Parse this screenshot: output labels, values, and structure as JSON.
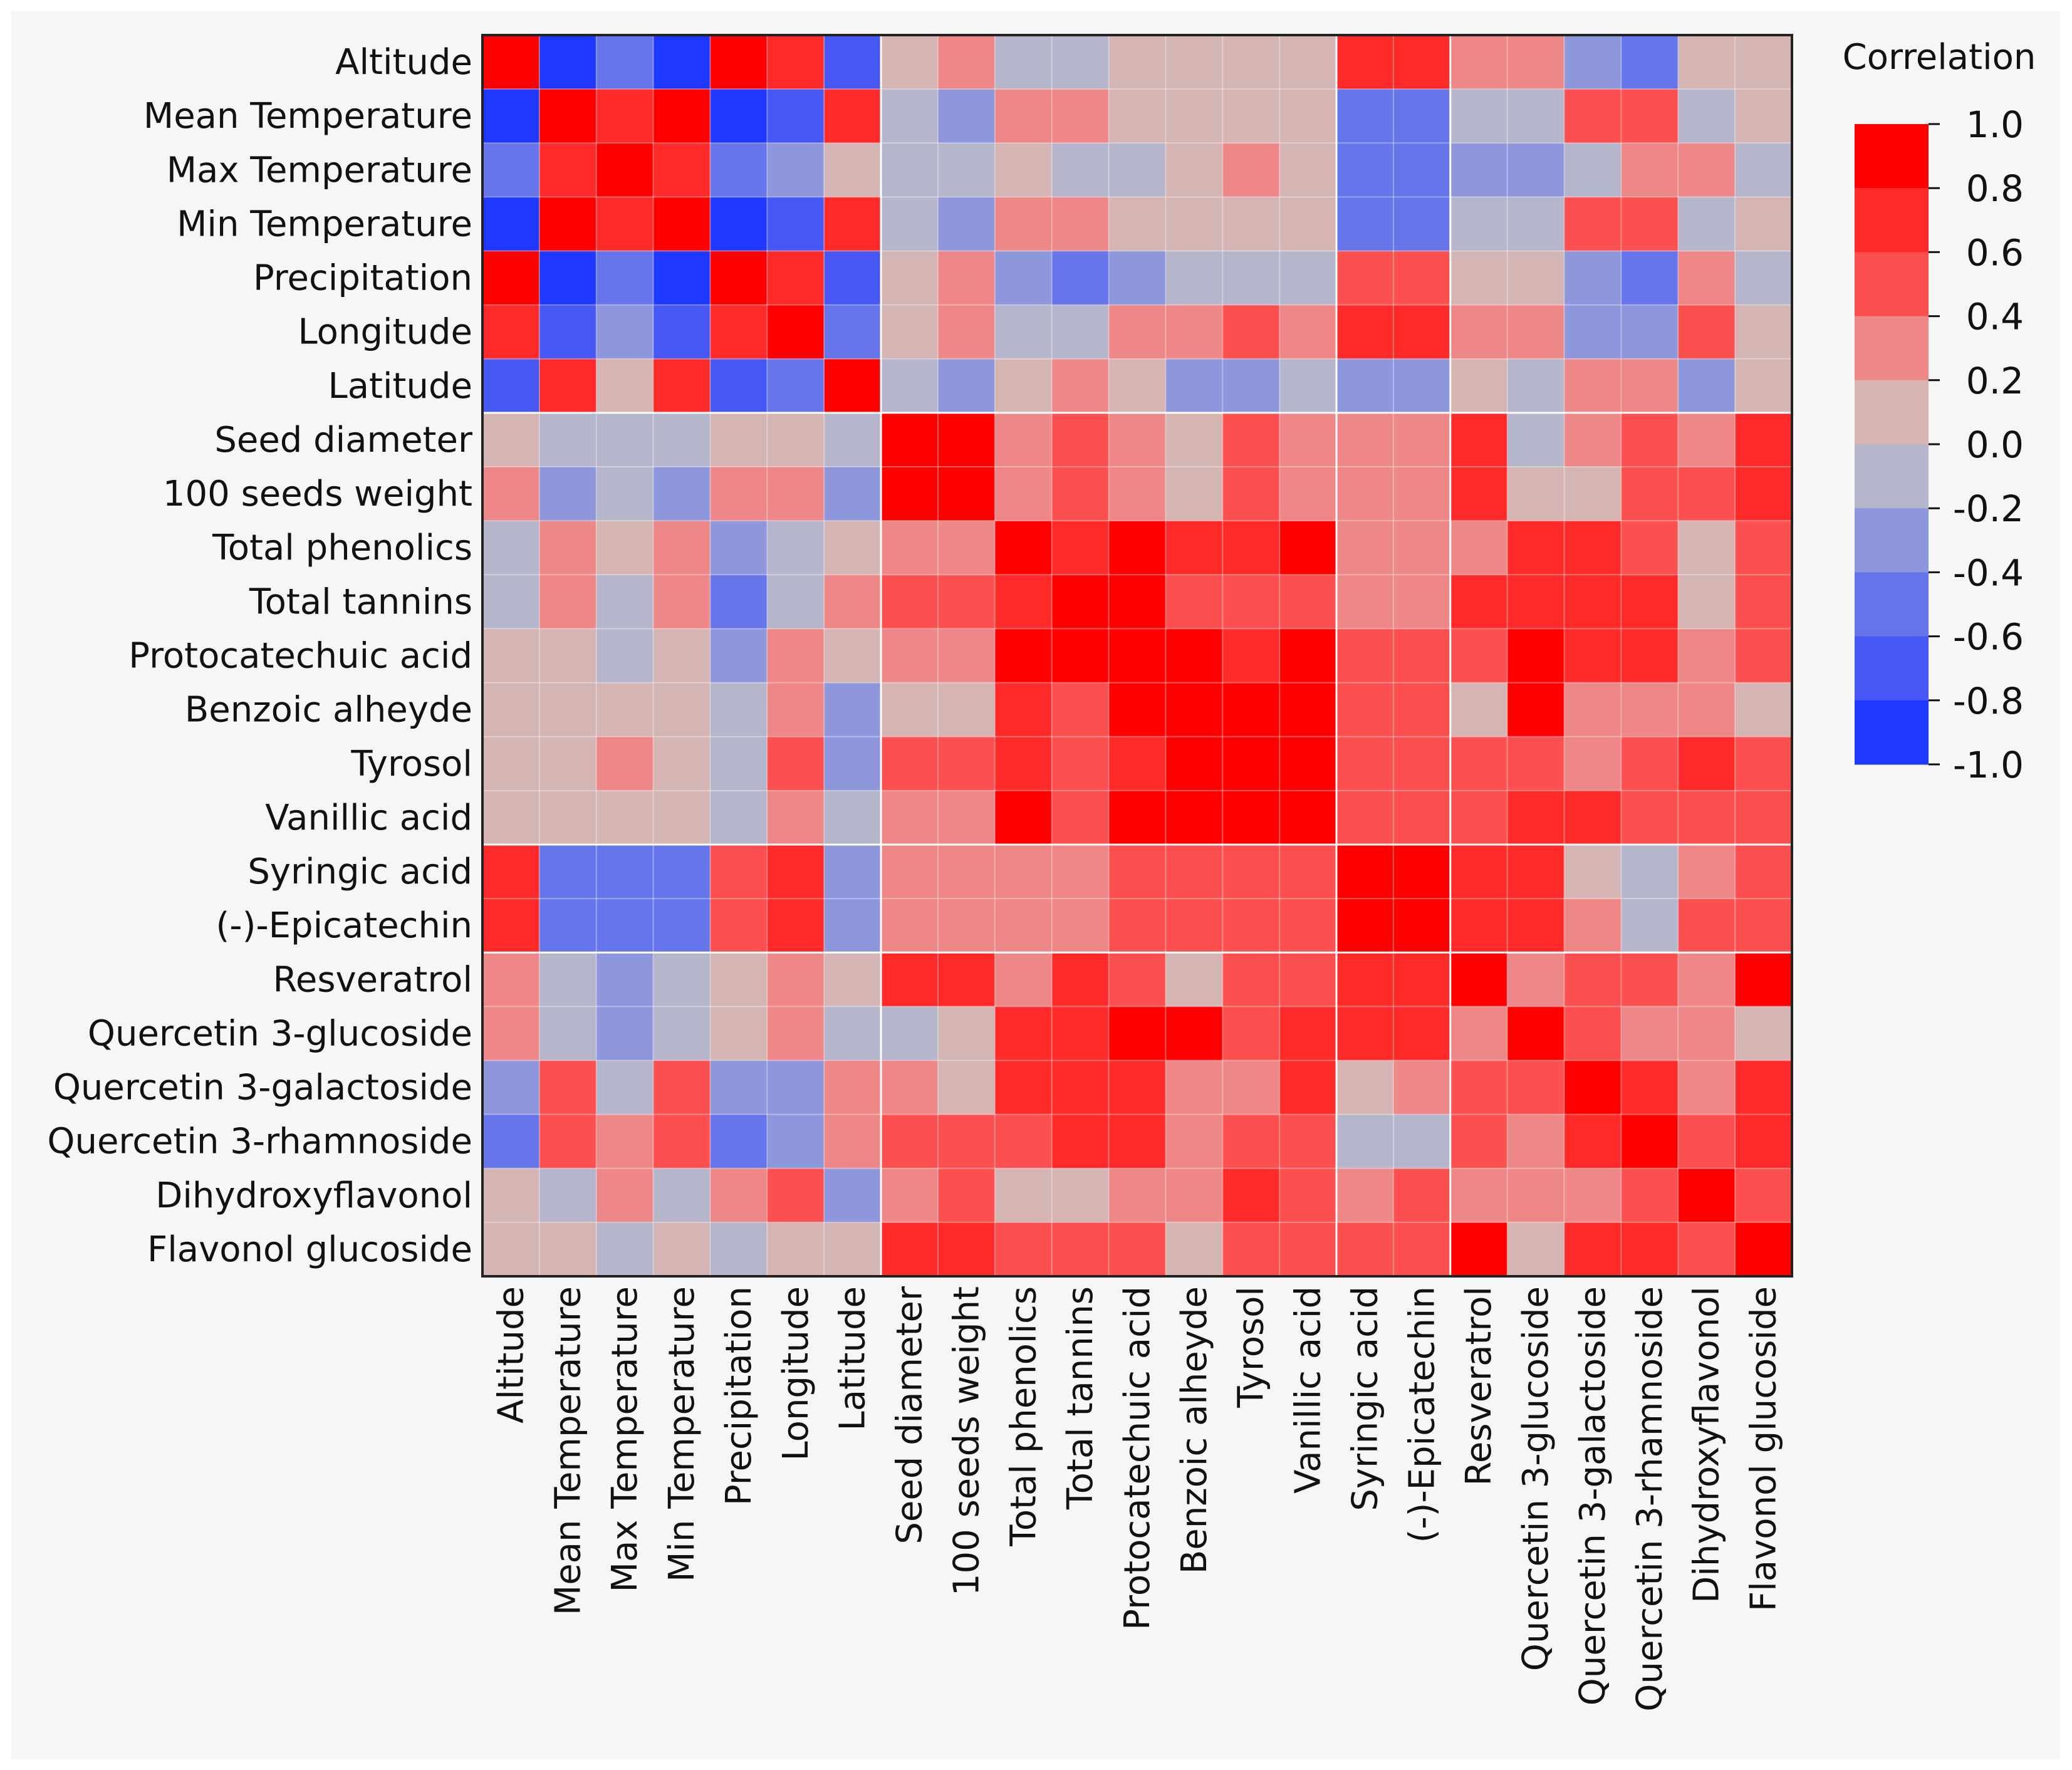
{
  "chart_data": {
    "type": "heatmap",
    "title": "",
    "labels": [
      "Altitude",
      "Mean Temperature",
      "Max Temperature",
      "Min Temperature",
      "Precipitation",
      "Longitude",
      "Latitude",
      "Seed diameter",
      "100 seeds weight",
      "Total phenolics",
      "Total tannins",
      "Protocatechuic acid",
      "Benzoic alheyde",
      "Tyrosol",
      "Vanillic acid",
      "Syringic acid",
      "(-)-Epicatechin",
      "Resveratrol",
      "Quercetin 3-glucoside",
      "Quercetin 3-galactoside",
      "Quercetin 3-rhamnoside",
      "Dihydroxyflavonol",
      "Flavonol glucoside"
    ],
    "values": [
      [
        1.0,
        -0.9,
        -0.5,
        -0.9,
        1.0,
        0.7,
        -0.7,
        0.1,
        0.3,
        -0.1,
        -0.1,
        0.1,
        0.1,
        0.1,
        0.1,
        0.7,
        0.7,
        0.3,
        0.3,
        -0.4,
        -0.6,
        0.1,
        0.1
      ],
      [
        -0.9,
        1.0,
        0.7,
        0.9,
        -0.9,
        -0.7,
        0.7,
        -0.1,
        -0.3,
        0.3,
        0.3,
        0.1,
        0.1,
        0.1,
        0.1,
        -0.5,
        -0.5,
        -0.1,
        -0.1,
        0.5,
        0.5,
        -0.1,
        0.1
      ],
      [
        -0.5,
        0.7,
        1.0,
        0.7,
        -0.5,
        -0.3,
        0.1,
        -0.1,
        -0.1,
        0.1,
        -0.1,
        -0.1,
        0.1,
        0.3,
        0.1,
        -0.5,
        -0.5,
        -0.3,
        -0.3,
        -0.1,
        0.3,
        0.3,
        -0.1
      ],
      [
        -0.9,
        0.9,
        0.7,
        1.0,
        -0.9,
        -0.7,
        0.7,
        -0.1,
        -0.3,
        0.3,
        0.3,
        0.1,
        0.1,
        0.1,
        0.1,
        -0.5,
        -0.5,
        -0.1,
        -0.1,
        0.5,
        0.5,
        -0.1,
        0.1
      ],
      [
        1.0,
        -0.9,
        -0.5,
        -0.9,
        1.0,
        0.7,
        -0.7,
        0.1,
        0.3,
        -0.3,
        -0.5,
        -0.3,
        -0.1,
        -0.1,
        -0.1,
        0.5,
        0.5,
        0.1,
        0.1,
        -0.3,
        -0.6,
        0.3,
        -0.1
      ],
      [
        0.7,
        -0.7,
        -0.3,
        -0.7,
        0.7,
        0.9,
        -0.5,
        0.1,
        0.3,
        -0.1,
        -0.1,
        0.3,
        0.3,
        0.5,
        0.3,
        0.7,
        0.7,
        0.3,
        0.3,
        -0.3,
        -0.3,
        0.5,
        0.1
      ],
      [
        -0.7,
        0.7,
        0.1,
        0.7,
        -0.7,
        -0.5,
        1.0,
        -0.1,
        -0.3,
        0.1,
        0.3,
        0.1,
        -0.3,
        -0.3,
        -0.1,
        -0.3,
        -0.3,
        0.1,
        -0.1,
        0.3,
        0.3,
        -0.3,
        0.1
      ],
      [
        0.1,
        -0.1,
        -0.1,
        -0.1,
        0.1,
        0.1,
        -0.1,
        1.0,
        1.0,
        0.3,
        0.5,
        0.3,
        0.1,
        0.5,
        0.3,
        0.3,
        0.3,
        0.7,
        -0.1,
        0.3,
        0.5,
        0.3,
        0.7
      ],
      [
        0.3,
        -0.3,
        -0.1,
        -0.3,
        0.3,
        0.3,
        -0.3,
        1.0,
        1.0,
        0.3,
        0.5,
        0.3,
        0.1,
        0.5,
        0.3,
        0.3,
        0.3,
        0.7,
        0.1,
        0.1,
        0.5,
        0.5,
        0.7
      ],
      [
        -0.1,
        0.3,
        0.1,
        0.3,
        -0.3,
        -0.1,
        0.1,
        0.3,
        0.3,
        1.0,
        0.7,
        0.9,
        0.7,
        0.7,
        0.9,
        0.3,
        0.3,
        0.3,
        0.7,
        0.7,
        0.5,
        0.1,
        0.5
      ],
      [
        -0.1,
        0.3,
        -0.1,
        0.3,
        -0.5,
        -0.1,
        0.3,
        0.5,
        0.5,
        0.7,
        0.9,
        0.9,
        0.5,
        0.5,
        0.5,
        0.3,
        0.3,
        0.7,
        0.7,
        0.7,
        0.7,
        0.1,
        0.5
      ],
      [
        0.1,
        0.1,
        -0.1,
        0.1,
        -0.3,
        0.3,
        0.1,
        0.3,
        0.3,
        0.9,
        0.9,
        0.9,
        0.9,
        0.7,
        0.9,
        0.5,
        0.5,
        0.5,
        0.9,
        0.7,
        0.7,
        0.3,
        0.5
      ],
      [
        0.1,
        0.1,
        0.1,
        0.1,
        -0.1,
        0.3,
        -0.3,
        0.1,
        0.1,
        0.7,
        0.5,
        0.9,
        0.9,
        0.9,
        0.9,
        0.5,
        0.5,
        0.1,
        0.9,
        0.3,
        0.3,
        0.3,
        0.1
      ],
      [
        0.1,
        0.1,
        0.3,
        0.1,
        -0.1,
        0.5,
        -0.3,
        0.5,
        0.5,
        0.7,
        0.5,
        0.7,
        0.9,
        0.9,
        0.9,
        0.5,
        0.5,
        0.5,
        0.5,
        0.3,
        0.5,
        0.7,
        0.5
      ],
      [
        0.1,
        0.1,
        0.1,
        0.1,
        -0.1,
        0.3,
        -0.1,
        0.3,
        0.3,
        0.9,
        0.5,
        0.9,
        0.9,
        0.9,
        0.9,
        0.5,
        0.5,
        0.5,
        0.7,
        0.7,
        0.5,
        0.5,
        0.5
      ],
      [
        0.7,
        -0.5,
        -0.5,
        -0.5,
        0.5,
        0.7,
        -0.3,
        0.3,
        0.3,
        0.3,
        0.3,
        0.5,
        0.5,
        0.5,
        0.5,
        0.9,
        0.9,
        0.7,
        0.7,
        0.1,
        -0.1,
        0.3,
        0.5
      ],
      [
        0.7,
        -0.5,
        -0.5,
        -0.5,
        0.5,
        0.7,
        -0.3,
        0.3,
        0.3,
        0.3,
        0.3,
        0.5,
        0.5,
        0.5,
        0.5,
        0.9,
        0.9,
        0.7,
        0.7,
        0.3,
        -0.1,
        0.5,
        0.5
      ],
      [
        0.3,
        -0.1,
        -0.3,
        -0.1,
        0.1,
        0.3,
        0.1,
        0.7,
        0.7,
        0.3,
        0.7,
        0.5,
        0.1,
        0.5,
        0.5,
        0.7,
        0.7,
        0.9,
        0.3,
        0.5,
        0.5,
        0.3,
        0.9
      ],
      [
        0.3,
        -0.1,
        -0.3,
        -0.1,
        0.1,
        0.3,
        -0.1,
        -0.1,
        0.1,
        0.7,
        0.7,
        0.9,
        0.9,
        0.5,
        0.7,
        0.7,
        0.7,
        0.3,
        0.9,
        0.5,
        0.3,
        0.3,
        0.1
      ],
      [
        -0.4,
        0.5,
        -0.1,
        0.5,
        -0.3,
        -0.3,
        0.3,
        0.3,
        0.1,
        0.7,
        0.7,
        0.7,
        0.3,
        0.3,
        0.7,
        0.1,
        0.3,
        0.5,
        0.5,
        0.9,
        0.7,
        0.3,
        0.7
      ],
      [
        -0.6,
        0.5,
        0.3,
        0.5,
        -0.6,
        -0.3,
        0.3,
        0.5,
        0.5,
        0.5,
        0.7,
        0.7,
        0.3,
        0.5,
        0.5,
        -0.1,
        -0.1,
        0.5,
        0.3,
        0.7,
        0.9,
        0.5,
        0.7
      ],
      [
        0.1,
        -0.1,
        0.3,
        -0.1,
        0.3,
        0.5,
        -0.3,
        0.3,
        0.5,
        0.1,
        0.1,
        0.3,
        0.3,
        0.7,
        0.5,
        0.3,
        0.5,
        0.3,
        0.3,
        0.3,
        0.5,
        1.0,
        0.5
      ],
      [
        0.1,
        0.1,
        -0.1,
        0.1,
        -0.1,
        0.1,
        0.1,
        0.7,
        0.7,
        0.5,
        0.5,
        0.5,
        0.1,
        0.5,
        0.5,
        0.5,
        0.5,
        0.9,
        0.1,
        0.7,
        0.7,
        0.5,
        0.9
      ]
    ],
    "color_scale": {
      "title": "Correlation",
      "min": -1.0,
      "max": 1.0,
      "ticks": [
        "1.0",
        "0.8",
        "0.6",
        "0.4",
        "0.2",
        "0.0",
        "-0.2",
        "-0.4",
        "-0.6",
        "-0.8",
        "-1.0"
      ],
      "bins": [
        {
          "from": 0.8,
          "to": 1.0,
          "color": "#ff0000"
        },
        {
          "from": 0.6,
          "to": 0.8,
          "color": "#fe2a2a"
        },
        {
          "from": 0.4,
          "to": 0.6,
          "color": "#fc5050"
        },
        {
          "from": 0.2,
          "to": 0.4,
          "color": "#ee8888"
        },
        {
          "from": 0.0,
          "to": 0.2,
          "color": "#d5b4b4"
        },
        {
          "from": -0.2,
          "to": 0.0,
          "color": "#b5b5cb"
        },
        {
          "from": -0.4,
          "to": -0.2,
          "color": "#8f97dc"
        },
        {
          "from": -0.6,
          "to": -0.4,
          "color": "#6675ea"
        },
        {
          "from": -0.8,
          "to": -0.6,
          "color": "#4657f4"
        },
        {
          "from": -1.0,
          "to": -0.8,
          "color": "#1f38ff"
        }
      ]
    },
    "grid": true,
    "legend_position": "right"
  }
}
